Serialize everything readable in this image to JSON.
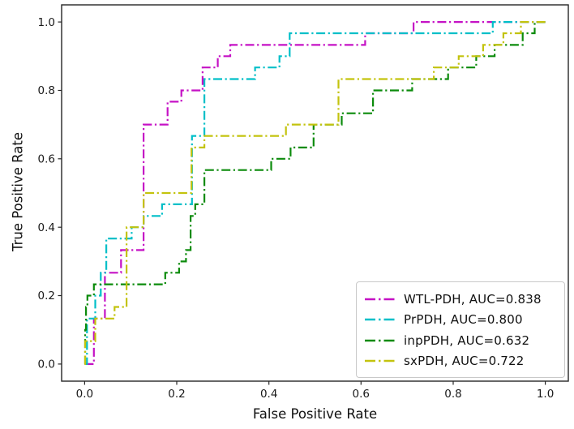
{
  "figure": {
    "background": "#ffffff",
    "axis_color": "#262626"
  },
  "chart_data": {
    "type": "line",
    "variant": "roc-step-curves, dash-dot linestyle",
    "title": "",
    "xlabel": "False Positive Rate",
    "ylabel": "True Positive Rate",
    "xlim": [
      -0.05,
      1.05
    ],
    "ylim": [
      -0.05,
      1.05
    ],
    "grid": false,
    "legend_position": "lower right",
    "xticks": [
      0.0,
      0.2,
      0.4,
      0.6,
      0.8,
      1.0
    ],
    "xtick_labels": [
      "0.0",
      "0.2",
      "0.4",
      "0.6",
      "0.8",
      "1.0"
    ],
    "yticks": [
      0.0,
      0.2,
      0.4,
      0.6,
      0.8,
      1.0
    ],
    "ytick_labels": [
      "0.0",
      "0.2",
      "0.4",
      "0.6",
      "0.8",
      "1.0"
    ],
    "series": [
      {
        "name": "WTL-PDH",
        "auc": "0.838",
        "label": "WTL-PDH, AUC=0.838",
        "color": "#c512c5",
        "linestyle": "dashdot",
        "steps": [
          [
            0,
            0
          ],
          [
            0.02,
            0.133
          ],
          [
            0.044,
            0.267
          ],
          [
            0.079,
            0.333
          ],
          [
            0.128,
            0.7
          ],
          [
            0.18,
            0.767
          ],
          [
            0.21,
            0.8
          ],
          [
            0.256,
            0.867
          ],
          [
            0.289,
            0.9
          ],
          [
            0.316,
            0.933
          ],
          [
            0.609,
            0.967
          ],
          [
            0.714,
            1.0
          ],
          [
            1.0,
            1.0
          ]
        ]
      },
      {
        "name": "PrPDH",
        "auc": "0.800",
        "label": "PrPDH, AUC=0.800",
        "color": "#00bfc8",
        "linestyle": "dashdot",
        "steps": [
          [
            0,
            0
          ],
          [
            0.005,
            0.133
          ],
          [
            0.023,
            0.2
          ],
          [
            0.035,
            0.267
          ],
          [
            0.047,
            0.367
          ],
          [
            0.102,
            0.4
          ],
          [
            0.128,
            0.433
          ],
          [
            0.168,
            0.467
          ],
          [
            0.233,
            0.667
          ],
          [
            0.26,
            0.833
          ],
          [
            0.37,
            0.867
          ],
          [
            0.423,
            0.9
          ],
          [
            0.445,
            0.967
          ],
          [
            0.886,
            1.0
          ],
          [
            1.0,
            1.0
          ]
        ]
      },
      {
        "name": "inpPDH",
        "auc": "0.632",
        "label": "inpPDH, AUC=0.632",
        "color": "#0c8b0c",
        "linestyle": "dashdot",
        "steps": [
          [
            0,
            0
          ],
          [
            0.001,
            0.1
          ],
          [
            0.003,
            0.167
          ],
          [
            0.006,
            0.2
          ],
          [
            0.02,
            0.233
          ],
          [
            0.175,
            0.267
          ],
          [
            0.205,
            0.3
          ],
          [
            0.22,
            0.333
          ],
          [
            0.23,
            0.433
          ],
          [
            0.24,
            0.467
          ],
          [
            0.26,
            0.567
          ],
          [
            0.405,
            0.6
          ],
          [
            0.447,
            0.633
          ],
          [
            0.497,
            0.7
          ],
          [
            0.558,
            0.733
          ],
          [
            0.626,
            0.8
          ],
          [
            0.711,
            0.833
          ],
          [
            0.789,
            0.867
          ],
          [
            0.85,
            0.9
          ],
          [
            0.89,
            0.933
          ],
          [
            0.951,
            0.967
          ],
          [
            0.977,
            1.0
          ],
          [
            1.0,
            1.0
          ]
        ]
      },
      {
        "name": "sxPDH",
        "auc": "0.722",
        "label": "sxPDH, AUC=0.722",
        "color": "#c3c30e",
        "linestyle": "dashdot",
        "steps": [
          [
            0,
            0
          ],
          [
            0.001,
            0.067
          ],
          [
            0.023,
            0.133
          ],
          [
            0.065,
            0.167
          ],
          [
            0.091,
            0.4
          ],
          [
            0.128,
            0.5
          ],
          [
            0.232,
            0.633
          ],
          [
            0.26,
            0.667
          ],
          [
            0.437,
            0.7
          ],
          [
            0.551,
            0.833
          ],
          [
            0.758,
            0.867
          ],
          [
            0.812,
            0.9
          ],
          [
            0.865,
            0.933
          ],
          [
            0.909,
            0.967
          ],
          [
            0.947,
            1.0
          ],
          [
            1.0,
            1.0
          ]
        ]
      }
    ]
  }
}
